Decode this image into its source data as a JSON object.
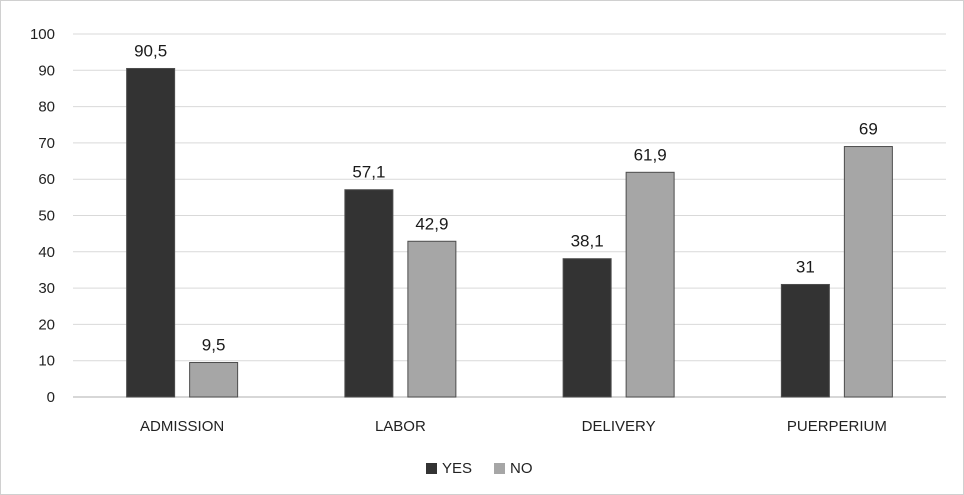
{
  "chart_data": {
    "type": "bar",
    "title": "",
    "xlabel": "",
    "ylabel": "",
    "categories": [
      "ADMISSION",
      "LABOR",
      "DELIVERY",
      "PUERPERIUM"
    ],
    "series": [
      {
        "name": "YES",
        "color": "#333333",
        "values": [
          90.5,
          57.1,
          38.1,
          31
        ],
        "labels": [
          "90,5",
          "57,1",
          "38,1",
          "31"
        ]
      },
      {
        "name": "NO",
        "color": "#a6a6a6",
        "values": [
          9.5,
          42.9,
          61.9,
          69
        ],
        "labels": [
          "9,5",
          "42,9",
          "61,9",
          "69"
        ]
      }
    ],
    "ylim": [
      0,
      100
    ],
    "yticks": [
      0,
      10,
      20,
      30,
      40,
      50,
      60,
      70,
      80,
      90,
      100
    ],
    "grid": true,
    "legend": "bottom-center"
  }
}
